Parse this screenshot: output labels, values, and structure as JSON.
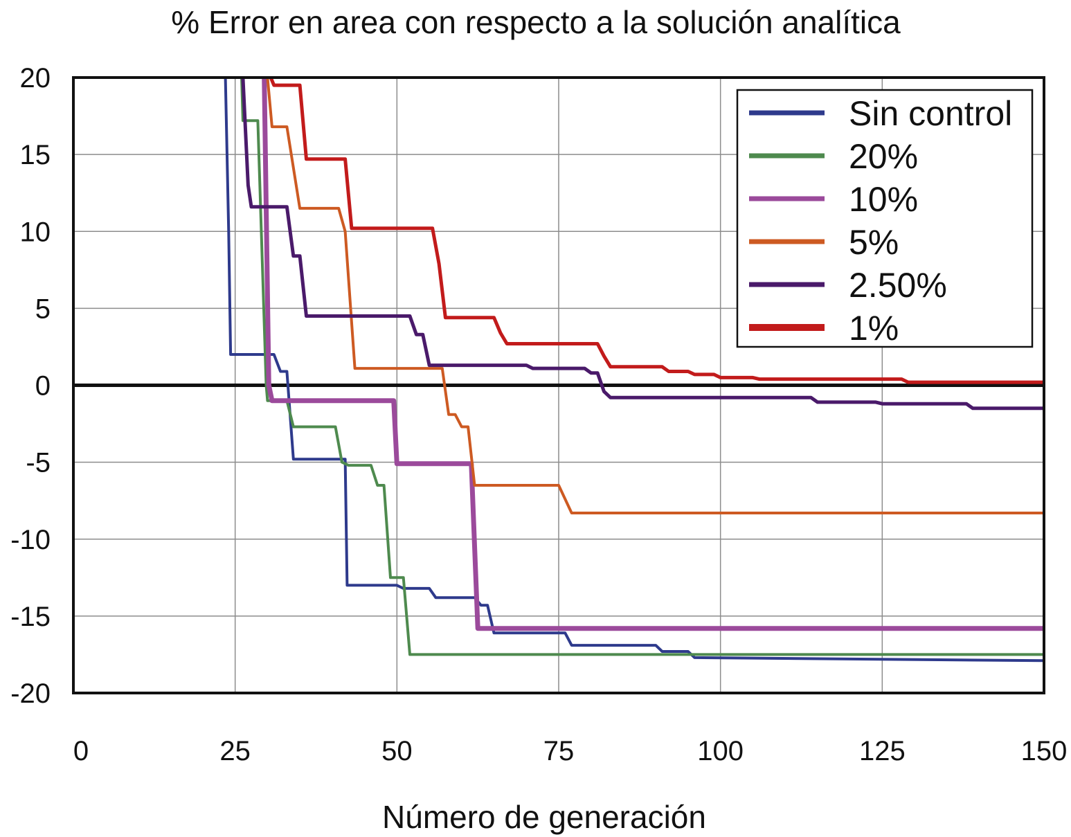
{
  "chart_data": {
    "type": "line",
    "title": "% Error en area con respecto a la solución analítica",
    "xlabel": "Número de generación",
    "ylabel": "",
    "xlim": [
      0,
      150
    ],
    "ylim": [
      -20,
      20
    ],
    "x_ticks": [
      0,
      25,
      50,
      75,
      100,
      125,
      150
    ],
    "y_ticks": [
      20,
      15,
      10,
      5,
      0,
      -5,
      -10,
      -15,
      -20
    ],
    "grid": true,
    "legend_position": "top-right",
    "zero_line": true,
    "series": [
      {
        "name": "Sin control",
        "color": "#2e3a8c",
        "points": [
          [
            23.5,
            20
          ],
          [
            24,
            10
          ],
          [
            24.3,
            2
          ],
          [
            28,
            2
          ],
          [
            31,
            2
          ],
          [
            32,
            0.9
          ],
          [
            33,
            0.9
          ],
          [
            34,
            -4.8
          ],
          [
            42,
            -4.8
          ],
          [
            42.3,
            -13
          ],
          [
            50,
            -13
          ],
          [
            51,
            -13.2
          ],
          [
            55,
            -13.2
          ],
          [
            56,
            -13.8
          ],
          [
            62,
            -13.8
          ],
          [
            63,
            -14.3
          ],
          [
            64,
            -14.3
          ],
          [
            65,
            -16.1
          ],
          [
            76,
            -16.1
          ],
          [
            77,
            -16.9
          ],
          [
            90,
            -16.9
          ],
          [
            91,
            -17.3
          ],
          [
            95,
            -17.3
          ],
          [
            96,
            -17.7
          ],
          [
            150,
            -17.9
          ]
        ]
      },
      {
        "name": "20%",
        "color": "#4e8a4e",
        "points": [
          [
            26,
            20
          ],
          [
            26.2,
            17.2
          ],
          [
            28.5,
            17.2
          ],
          [
            29.8,
            0
          ],
          [
            30,
            -1
          ],
          [
            33,
            -1
          ],
          [
            34,
            -2.7
          ],
          [
            40.5,
            -2.7
          ],
          [
            41.5,
            -5
          ],
          [
            42.5,
            -5.2
          ],
          [
            46,
            -5.2
          ],
          [
            47,
            -6.5
          ],
          [
            48,
            -6.5
          ],
          [
            49,
            -12.5
          ],
          [
            51,
            -12.5
          ],
          [
            52,
            -17.5
          ],
          [
            150,
            -17.5
          ]
        ]
      },
      {
        "name": "10%",
        "color": "#9b4a9b",
        "points": [
          [
            29.5,
            20
          ],
          [
            30.2,
            0
          ],
          [
            30.7,
            -1
          ],
          [
            49.5,
            -1
          ],
          [
            50,
            -5.1
          ],
          [
            61.5,
            -5.1
          ],
          [
            62.5,
            -15.8
          ],
          [
            150,
            -15.8
          ]
        ]
      },
      {
        "name": "5%",
        "color": "#cd5a22",
        "points": [
          [
            30,
            20
          ],
          [
            30.7,
            16.8
          ],
          [
            33,
            16.8
          ],
          [
            35,
            11.5
          ],
          [
            41,
            11.5
          ],
          [
            42,
            10
          ],
          [
            43.5,
            1.1
          ],
          [
            57,
            1.1
          ],
          [
            58,
            -1.9
          ],
          [
            59,
            -1.9
          ],
          [
            60,
            -2.7
          ],
          [
            61,
            -2.7
          ],
          [
            62,
            -6.5
          ],
          [
            75,
            -6.5
          ],
          [
            77,
            -8.3
          ],
          [
            150,
            -8.3
          ]
        ]
      },
      {
        "name": "2.50%",
        "color": "#4a1a6a",
        "points": [
          [
            26.2,
            20
          ],
          [
            27,
            13
          ],
          [
            27.5,
            11.6
          ],
          [
            33,
            11.6
          ],
          [
            34,
            8.4
          ],
          [
            35,
            8.4
          ],
          [
            36,
            4.5
          ],
          [
            52,
            4.5
          ],
          [
            53,
            3.3
          ],
          [
            54,
            3.3
          ],
          [
            55,
            1.3
          ],
          [
            70,
            1.3
          ],
          [
            71,
            1.1
          ],
          [
            79,
            1.1
          ],
          [
            80,
            0.8
          ],
          [
            81,
            0.8
          ],
          [
            82,
            -0.4
          ],
          [
            83,
            -0.8
          ],
          [
            114,
            -0.8
          ],
          [
            115,
            -1.1
          ],
          [
            124,
            -1.1
          ],
          [
            125,
            -1.2
          ],
          [
            138,
            -1.2
          ],
          [
            139,
            -1.5
          ],
          [
            150,
            -1.5
          ]
        ]
      },
      {
        "name": "1%",
        "color": "#c21b1b",
        "points": [
          [
            30.5,
            20
          ],
          [
            31,
            19.5
          ],
          [
            35,
            19.5
          ],
          [
            36,
            14.7
          ],
          [
            42,
            14.7
          ],
          [
            43,
            10.2
          ],
          [
            55.5,
            10.2
          ],
          [
            56.5,
            7.9
          ],
          [
            57.5,
            4.4
          ],
          [
            65,
            4.4
          ],
          [
            66,
            3.4
          ],
          [
            67,
            2.7
          ],
          [
            81,
            2.7
          ],
          [
            82,
            1.9
          ],
          [
            83,
            1.2
          ],
          [
            91,
            1.2
          ],
          [
            92,
            0.9
          ],
          [
            95,
            0.9
          ],
          [
            96,
            0.7
          ],
          [
            99,
            0.7
          ],
          [
            100,
            0.5
          ],
          [
            105,
            0.5
          ],
          [
            106,
            0.4
          ],
          [
            128,
            0.4
          ],
          [
            129,
            0.2
          ],
          [
            150,
            0.2
          ]
        ]
      }
    ]
  }
}
